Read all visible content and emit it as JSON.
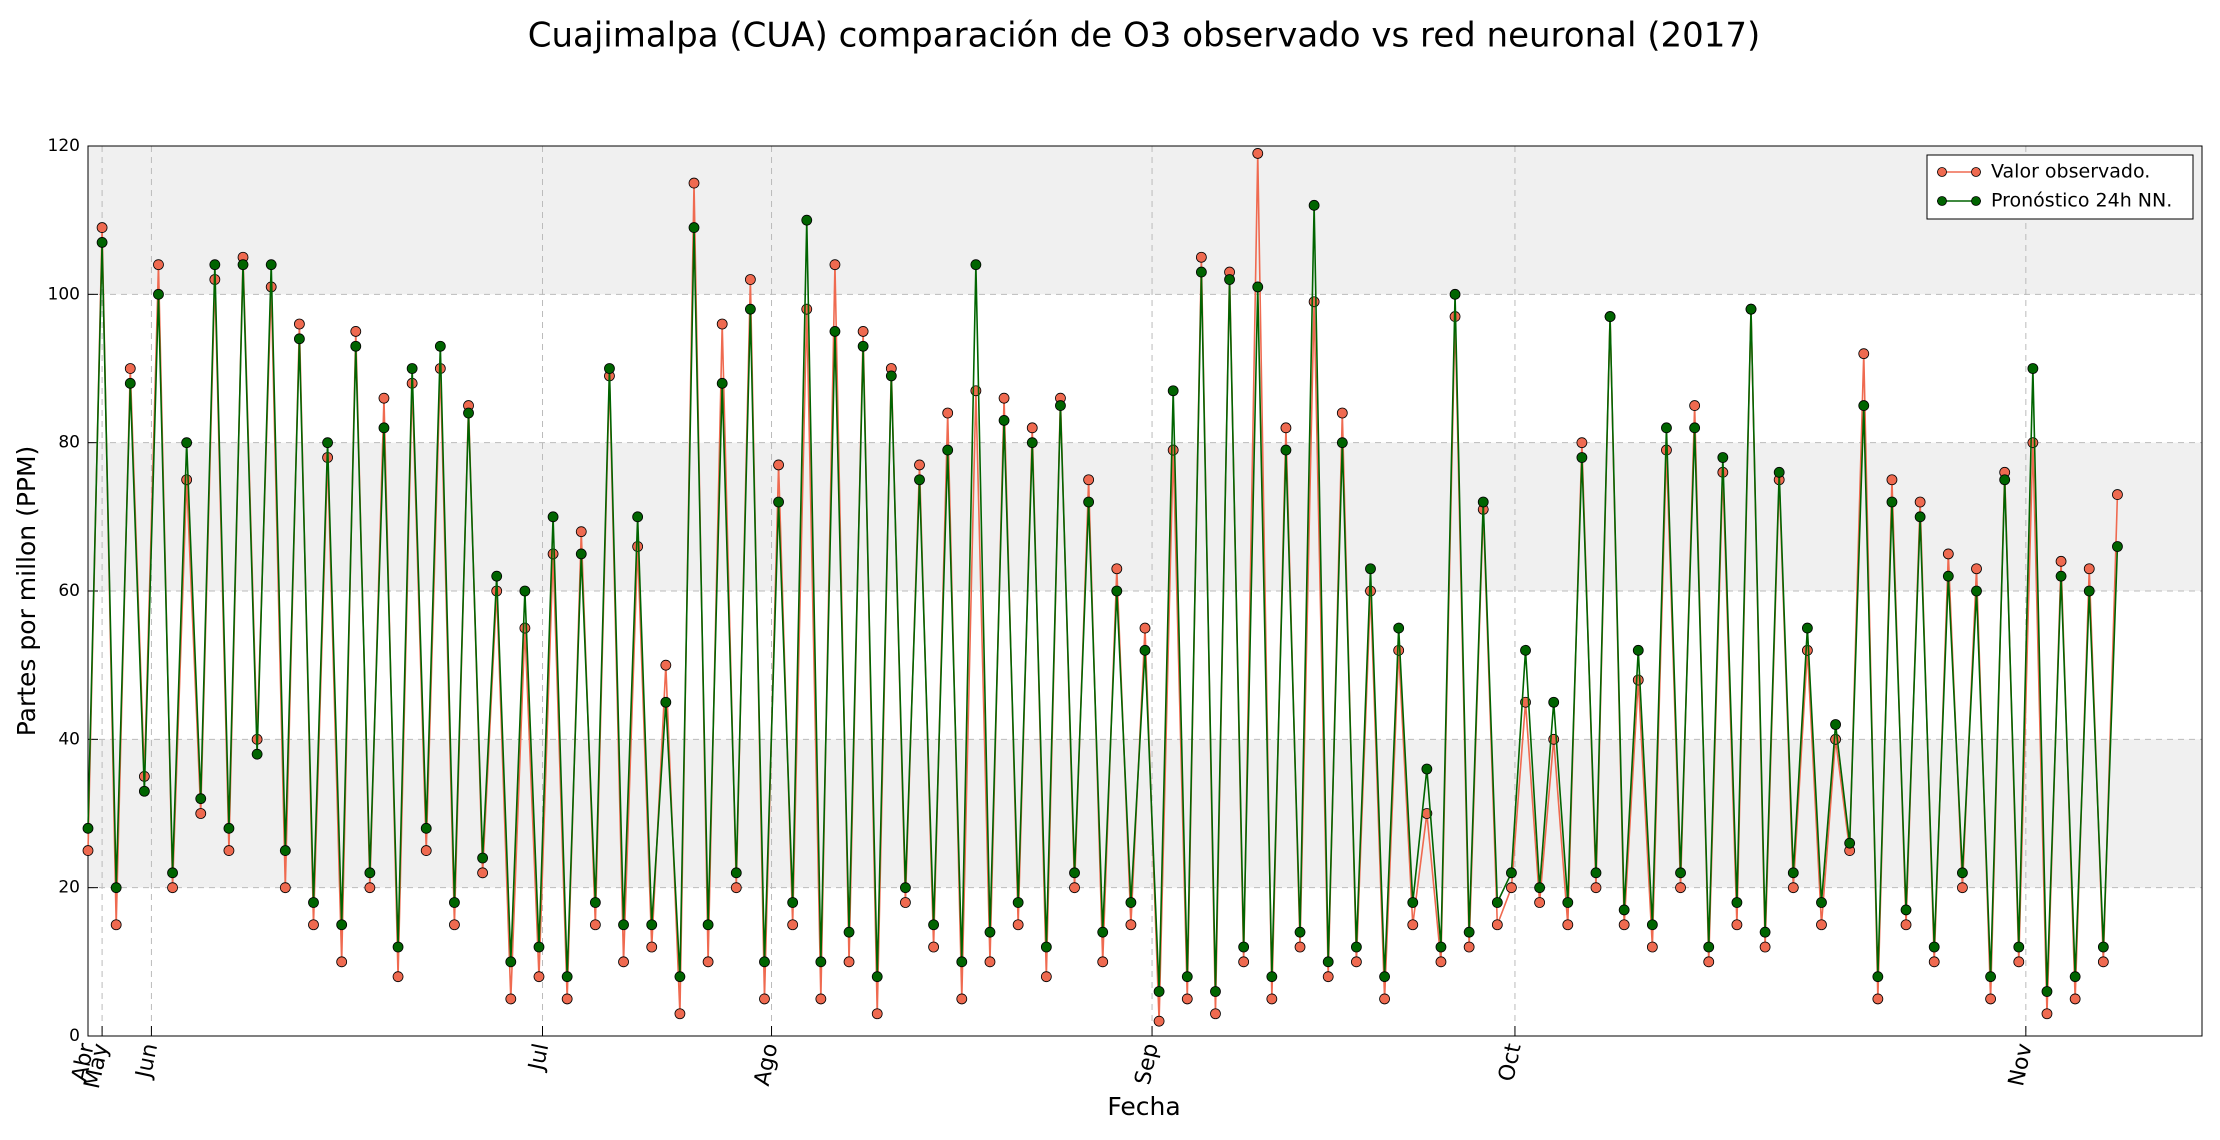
{
  "chart_data": {
    "type": "line",
    "title": "Cuajimalpa (CUA) comparación de O3 observado vs red neuronal (2017)",
    "x_label": "Fecha",
    "y_label": "Partes por millon (PPM)",
    "x": [
      0,
      2,
      4,
      6,
      8,
      10,
      12,
      14,
      16,
      18,
      20,
      22,
      24,
      26,
      28,
      30,
      32,
      34,
      36,
      38,
      40,
      42,
      44,
      46,
      48,
      50,
      52,
      54,
      56,
      58,
      60,
      62,
      64,
      66,
      68,
      70,
      72,
      74,
      76,
      78,
      80,
      82,
      84,
      86,
      88,
      90,
      92,
      94,
      96,
      98,
      100,
      102,
      104,
      106,
      108,
      110,
      112,
      114,
      116,
      118,
      120,
      122,
      124,
      126,
      128,
      130,
      132,
      134,
      136,
      138,
      140,
      142,
      144,
      146,
      148,
      150,
      152,
      154,
      156,
      158,
      160,
      162,
      164,
      166,
      168,
      170,
      172,
      174,
      176,
      178,
      180,
      182,
      184,
      186,
      188,
      190,
      192,
      194,
      196,
      198,
      200,
      202,
      204,
      206,
      208,
      210,
      212,
      214,
      216,
      218,
      220,
      222,
      224,
      226,
      228,
      230,
      232,
      234,
      236,
      238,
      240,
      242,
      244,
      246,
      248,
      250,
      252,
      254,
      256,
      258,
      260,
      262,
      264,
      266,
      268,
      270,
      272,
      274,
      276,
      278,
      280,
      282,
      284,
      286,
      288
    ],
    "xlim": [
      0,
      300
    ],
    "xticks": [
      {
        "value": 0,
        "label": "Abr"
      },
      {
        "value": 2,
        "label": "May"
      },
      {
        "value": 9,
        "label": "Jun"
      },
      {
        "value": 64.5,
        "label": "Jul"
      },
      {
        "value": 97,
        "label": "Ago"
      },
      {
        "value": 151,
        "label": "Sep"
      },
      {
        "value": 202.5,
        "label": "Oct"
      },
      {
        "value": 275,
        "label": "Nov"
      }
    ],
    "ylim": [
      0,
      120
    ],
    "yticks": [
      0,
      20,
      40,
      60,
      80,
      100,
      120
    ],
    "grid": true,
    "legend": "upper right",
    "series": [
      {
        "name": "Valor observado.",
        "color": "#ef6a50",
        "values": [
          25,
          109,
          15,
          90,
          35,
          104,
          20,
          75,
          30,
          102,
          25,
          105,
          40,
          101,
          20,
          96,
          15,
          78,
          10,
          95,
          20,
          86,
          8,
          88,
          25,
          90,
          15,
          85,
          22,
          60,
          5,
          55,
          8,
          65,
          5,
          68,
          15,
          89,
          10,
          66,
          12,
          50,
          3,
          115,
          10,
          96,
          20,
          102,
          5,
          77,
          15,
          98,
          5,
          104,
          10,
          95,
          3,
          90,
          18,
          77,
          12,
          84,
          5,
          87,
          10,
          86,
          15,
          82,
          8,
          86,
          20,
          75,
          10,
          63,
          15,
          55,
          2,
          79,
          5,
          105,
          3,
          103,
          10,
          119,
          5,
          82,
          12,
          99,
          8,
          84,
          10,
          60,
          5,
          52,
          15,
          30,
          10,
          97,
          12,
          71,
          15,
          20,
          45,
          18,
          40,
          15,
          80,
          20,
          97,
          15,
          48,
          12,
          79,
          20,
          85,
          10,
          76,
          15,
          98,
          12,
          75,
          20,
          52,
          15,
          40,
          25,
          92,
          5,
          75,
          15,
          72,
          10,
          65,
          20,
          63,
          5,
          76,
          10,
          80,
          3,
          64,
          5,
          63,
          10,
          73
        ]
      },
      {
        "name": "Pronóstico 24h NN.",
        "color": "#006400",
        "values": [
          28,
          107,
          20,
          88,
          33,
          100,
          22,
          80,
          32,
          104,
          28,
          104,
          38,
          104,
          25,
          94,
          18,
          80,
          15,
          93,
          22,
          82,
          12,
          90,
          28,
          93,
          18,
          84,
          24,
          62,
          10,
          60,
          12,
          70,
          8,
          65,
          18,
          90,
          15,
          70,
          15,
          45,
          8,
          109,
          15,
          88,
          22,
          98,
          10,
          72,
          18,
          110,
          10,
          95,
          14,
          93,
          8,
          89,
          20,
          75,
          15,
          79,
          10,
          104,
          14,
          83,
          18,
          80,
          12,
          85,
          22,
          72,
          14,
          60,
          18,
          52,
          6,
          87,
          8,
          103,
          6,
          102,
          12,
          101,
          8,
          79,
          14,
          112,
          10,
          80,
          12,
          63,
          8,
          55,
          18,
          36,
          12,
          100,
          14,
          72,
          18,
          22,
          52,
          20,
          45,
          18,
          78,
          22,
          97,
          17,
          52,
          15,
          82,
          22,
          82,
          12,
          78,
          18,
          98,
          14,
          76,
          22,
          55,
          18,
          42,
          26,
          85,
          8,
          72,
          17,
          70,
          12,
          62,
          22,
          60,
          8,
          75,
          12,
          90,
          6,
          62,
          8,
          60,
          12,
          66
        ]
      }
    ]
  }
}
